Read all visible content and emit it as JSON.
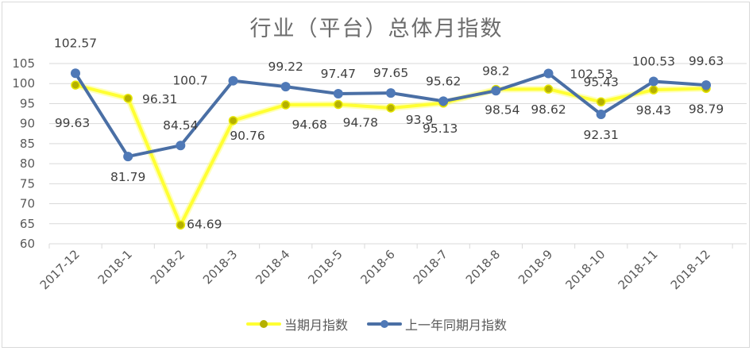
{
  "chart_data": {
    "type": "line",
    "title": "行业（平台）总体月指数",
    "xlabel": "",
    "ylabel": "",
    "categories": [
      "2017-12",
      "2018-1",
      "2018-2",
      "2018-3",
      "2018-4",
      "2018-5",
      "2018-6",
      "2018-7",
      "2018-8",
      "2018-9",
      "2018-10",
      "2018-11",
      "2018-12"
    ],
    "series": [
      {
        "name": "当期月指数",
        "color": "#ffff33",
        "marker_color": "#b5b000",
        "values": [
          99.63,
          96.31,
          64.69,
          90.76,
          94.68,
          94.78,
          93.9,
          95.13,
          98.54,
          98.62,
          95.43,
          98.43,
          98.79
        ]
      },
      {
        "name": "上一年同期月指数",
        "color": "#4a6fa5",
        "marker_color": "#4f79b7",
        "values": [
          102.57,
          81.79,
          84.54,
          100.7,
          99.22,
          97.47,
          97.65,
          95.62,
          98.2,
          102.53,
          92.31,
          100.53,
          99.63
        ]
      }
    ],
    "ylim": [
      60,
      105
    ],
    "yticks": [
      60,
      65,
      70,
      75,
      80,
      85,
      90,
      95,
      100,
      105
    ],
    "grid": true,
    "legend_position": "bottom",
    "data_labels": true
  },
  "legend": {
    "current": "当期月指数",
    "previous": "上一年同期月指数"
  }
}
